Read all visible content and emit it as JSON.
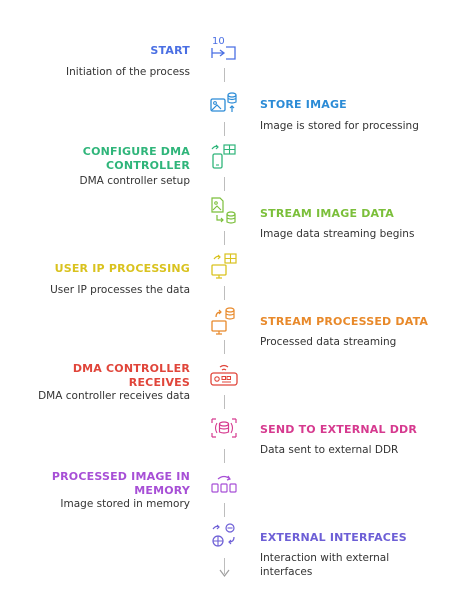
{
  "steps": [
    {
      "title": "START",
      "desc": "Initiation of the process",
      "side": "left",
      "color": "#4a6fe3",
      "icon": "login-arrow-icon"
    },
    {
      "title": "STORE IMAGE",
      "desc": "Image is stored for processing",
      "side": "right",
      "color": "#2b8bd6",
      "icon": "image-database-icon"
    },
    {
      "title": "CONFIGURE DMA CONTROLLER",
      "desc": "DMA controller setup",
      "side": "left",
      "color": "#2fb57a",
      "icon": "device-sync-icon"
    },
    {
      "title": "STREAM IMAGE DATA",
      "desc": "Image data streaming begins",
      "side": "right",
      "color": "#7bbf3a",
      "icon": "image-stream-icon"
    },
    {
      "title": "USER IP PROCESSING",
      "desc": "User IP processes the data",
      "side": "left",
      "color": "#d9c21e",
      "icon": "monitor-sync-icon"
    },
    {
      "title": "STREAM PROCESSED DATA",
      "desc": "Processed data streaming",
      "side": "right",
      "color": "#e8892a",
      "icon": "database-monitor-icon"
    },
    {
      "title": "DMA CONTROLLER RECEIVES",
      "desc": "DMA controller receives data",
      "side": "left",
      "color": "#e0453a",
      "icon": "router-icon"
    },
    {
      "title": "SEND TO EXTERNAL DDR",
      "desc": "Data sent to external DDR",
      "side": "right",
      "color": "#d63a8f",
      "icon": "database-expand-icon"
    },
    {
      "title": "PROCESSED IMAGE IN MEMORY",
      "desc": "Image stored in memory",
      "side": "left",
      "color": "#a74fd6",
      "icon": "memory-blocks-icon"
    },
    {
      "title": "EXTERNAL INTERFACES",
      "desc": "Interaction with external interfaces",
      "side": "right",
      "color": "#6d5fd6",
      "icon": "interfaces-icon"
    }
  ],
  "start_icon_text": "10"
}
